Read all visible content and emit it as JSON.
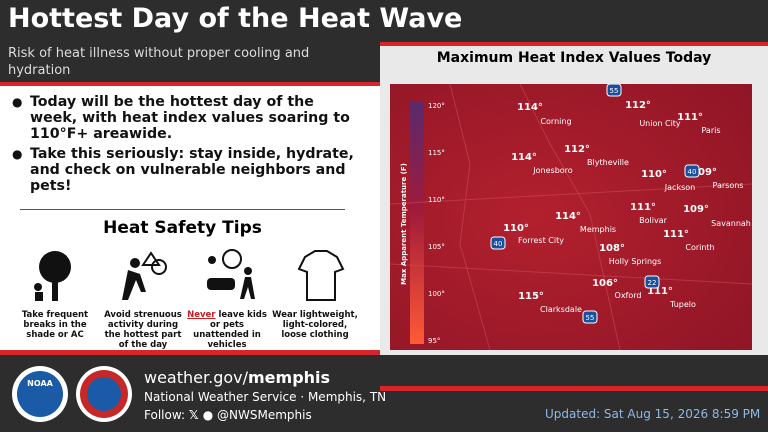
{
  "header": {
    "title": "Hottest Day of the Heat Wave",
    "subtitle": "Risk of heat illness without proper cooling and hydration"
  },
  "bullets": [
    "Today will be the hottest day of the week, with heat index values soaring to 110°F+ areawide.",
    "Take this seriously: stay inside, hydrate, and check on vulnerable neighbors and pets!"
  ],
  "tips": {
    "title": "Heat Safety Tips",
    "items": [
      {
        "text": "Take frequent breaks in the shade or AC"
      },
      {
        "text": "Avoid strenuous activity during the hottest part of the day"
      },
      {
        "emphasis": "Never",
        "text": "leave kids or pets unattended in vehicles"
      },
      {
        "text": "Wear lightweight, light-colored, loose clothing"
      }
    ]
  },
  "map": {
    "title": "Maximum Heat Index Values Today",
    "legend": {
      "title": "Max Apparent Temperature (F)",
      "ticks": [
        "120°",
        "115°",
        "110°",
        "105°",
        "100°",
        "95°"
      ]
    },
    "values": [
      "114°",
      "112°",
      "111°",
      "114°",
      "112°",
      "110°",
      "109°",
      "111°",
      "109°",
      "114°",
      "110°",
      "111°",
      "108°",
      "106°",
      "111°",
      "115°"
    ],
    "cities": [
      "Corning",
      "Union City",
      "Paris",
      "Jonesboro",
      "Blytheville",
      "Jackson",
      "Parsons",
      "Bolivar",
      "Savannah",
      "Memphis",
      "Forrest City",
      "Corinth",
      "Holly Springs",
      "Oxford",
      "Tupelo",
      "Clarksdale"
    ],
    "interstates": [
      "55",
      "40",
      "40",
      "22",
      "55"
    ]
  },
  "footer": {
    "site_prefix": "weather.gov/",
    "site_office": "memphis",
    "office": "National Weather Service · Memphis, TN",
    "follow": "Follow:",
    "handle": "@NWSMemphis",
    "updated": "Updated: Sat Aug 15, 2026 8:59 PM"
  }
}
